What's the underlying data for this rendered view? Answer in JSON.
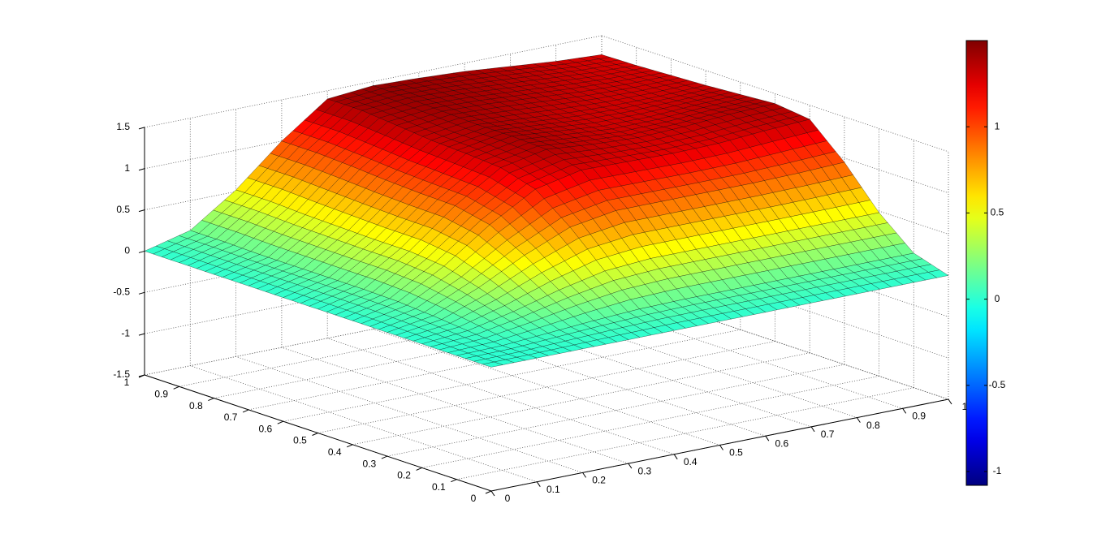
{
  "chart_data": {
    "type": "surface",
    "x": [
      0,
      0.1,
      0.2,
      0.3,
      0.4,
      0.5,
      0.6,
      0.7,
      0.8,
      0.9,
      1
    ],
    "y": [
      0,
      0.1,
      0.2,
      0.3,
      0.4,
      0.5,
      0.6,
      0.7,
      0.8,
      0.9,
      1
    ],
    "z": [
      [
        0,
        0,
        0,
        0,
        0,
        0,
        0,
        0,
        0,
        0,
        0
      ],
      [
        0,
        0.01,
        0.05,
        0.09,
        0.12,
        0.13,
        0.13,
        0.13,
        0.13,
        0.13,
        0.13
      ],
      [
        0,
        0.05,
        0.17,
        0.32,
        0.44,
        0.48,
        0.48,
        0.48,
        0.48,
        0.48,
        0.48
      ],
      [
        0,
        0.09,
        0.32,
        0.6,
        0.83,
        0.92,
        0.92,
        0.92,
        0.92,
        0.93,
        0.95
      ],
      [
        0,
        0.12,
        0.44,
        0.83,
        1.15,
        1.27,
        1.26,
        1.25,
        1.26,
        1.3,
        1.33
      ],
      [
        0,
        0.13,
        0.48,
        0.92,
        1.27,
        1.38,
        1.33,
        1.3,
        1.32,
        1.36,
        1.38
      ],
      [
        0,
        0.13,
        0.48,
        0.93,
        1.3,
        1.4,
        1.35,
        1.3,
        1.3,
        1.33,
        1.35
      ],
      [
        0,
        0.13,
        0.49,
        0.95,
        1.32,
        1.4,
        1.36,
        1.32,
        1.3,
        1.3,
        1.32
      ],
      [
        0,
        0.13,
        0.5,
        0.98,
        1.36,
        1.42,
        1.4,
        1.36,
        1.32,
        1.3,
        1.3
      ],
      [
        0,
        0.14,
        0.52,
        1.0,
        1.4,
        1.44,
        1.42,
        1.38,
        1.34,
        1.3,
        1.28
      ],
      [
        0,
        0.14,
        0.52,
        1.0,
        1.4,
        1.45,
        1.43,
        1.4,
        1.35,
        1.3,
        1.27
      ]
    ],
    "xlim": [
      0,
      1
    ],
    "ylim": [
      0,
      1
    ],
    "zlim": [
      -1.5,
      1.5
    ],
    "xticks": [
      0,
      0.1,
      0.2,
      0.3,
      0.4,
      0.5,
      0.6,
      0.7,
      0.8,
      0.9,
      1
    ],
    "yticks": [
      0,
      0.1,
      0.2,
      0.3,
      0.4,
      0.5,
      0.6,
      0.7,
      0.8,
      0.9,
      1
    ],
    "zticks": [
      -1.5,
      -1,
      -0.5,
      0,
      0.5,
      1,
      1.5
    ],
    "colormap": "jet",
    "clim": [
      -1.08,
      1.5
    ],
    "colorbar_ticks": [
      -1,
      -0.5,
      0,
      0.5,
      1
    ],
    "grid": true
  }
}
